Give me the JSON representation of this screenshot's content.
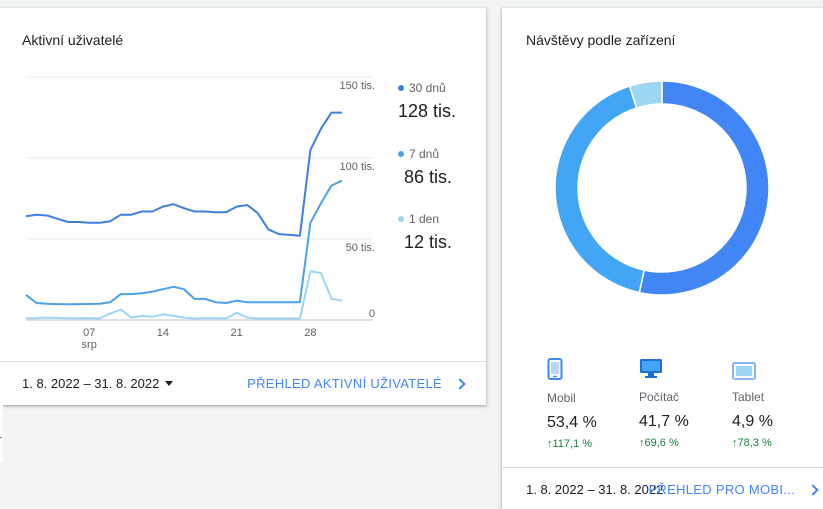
{
  "active_users": {
    "title": "Aktivní uživatelé",
    "legend": [
      {
        "name": "30 dnů",
        "value": "128 tis.",
        "color": "#3f7fe0"
      },
      {
        "name": "7 dnů",
        "value": "86 tis.",
        "color": "#4aa0ea"
      },
      {
        "name": "1 den",
        "value": "12 tis.",
        "color": "#9dd6f3"
      }
    ],
    "date_range": "1. 8. 2022 – 31. 8. 2022",
    "report_link": "PŘEHLED AKTIVNÍ UŽIVATELÉ"
  },
  "devices": {
    "title": "Návštěvy podle zařízení",
    "items": [
      {
        "name": "Mobil",
        "value": "53,4 %",
        "change": "↑117,1 %",
        "icon": "smartphone-icon"
      },
      {
        "name": "Počítač",
        "value": "41,7 %",
        "change": "↑69,6 %",
        "icon": "desktop-icon"
      },
      {
        "name": "Tablet",
        "value": "4,9 %",
        "change": "↑78,3 %",
        "icon": "tablet-icon"
      }
    ],
    "date_range": "1. 8. 2022 – 31. 8. 2022",
    "report_link": "PŘEHLED PRO MOBI..."
  },
  "chart_data": [
    {
      "type": "line",
      "x_tick_labels": [
        "07",
        "14",
        "21",
        "28"
      ],
      "x_sublabel": "srp",
      "y_tick_labels": [
        "0",
        "50 tis.",
        "100 tis.",
        "150 tis."
      ],
      "ylim": [
        0,
        150000
      ],
      "x": [
        1,
        2,
        3,
        4,
        5,
        6,
        7,
        8,
        9,
        10,
        11,
        12,
        13,
        14,
        15,
        16,
        17,
        18,
        19,
        20,
        21,
        22,
        23,
        24,
        25,
        26,
        27,
        28,
        29,
        30,
        31
      ],
      "series": [
        {
          "name": "30 dnů",
          "color": "#3f7fe0",
          "values": [
            64000,
            65000,
            64500,
            62500,
            60500,
            60500,
            60000,
            60000,
            61000,
            65000,
            65000,
            67000,
            67000,
            70000,
            71500,
            69000,
            67000,
            67000,
            66500,
            66500,
            70000,
            71000,
            66000,
            56000,
            53000,
            52500,
            52000,
            105000,
            118000,
            128000,
            128000
          ]
        },
        {
          "name": "7 dnů",
          "color": "#4aa0ea",
          "values": [
            15500,
            10500,
            10000,
            9800,
            9700,
            9800,
            9900,
            10000,
            11000,
            16000,
            16000,
            16500,
            17500,
            19000,
            20500,
            19000,
            13000,
            13000,
            11000,
            10500,
            12000,
            11000,
            11000,
            11000,
            11000,
            11000,
            11000,
            60000,
            72000,
            83000,
            86000
          ]
        },
        {
          "name": "1 den",
          "color": "#9dd6f3",
          "values": [
            1000,
            1200,
            1500,
            1300,
            1100,
            1100,
            1200,
            1000,
            4000,
            6500,
            1500,
            2500,
            2000,
            3500,
            2500,
            1500,
            1000,
            1200,
            1200,
            1000,
            4500,
            1500,
            1000,
            1000,
            1000,
            1000,
            1000,
            30000,
            29000,
            13000,
            12000
          ]
        }
      ]
    },
    {
      "type": "pie",
      "labels": [
        "Mobil",
        "Počítač",
        "Tablet"
      ],
      "values": [
        53.4,
        41.7,
        4.9
      ],
      "colors": [
        "#4285f4",
        "#42a5f5",
        "#9dd6f3"
      ]
    }
  ]
}
